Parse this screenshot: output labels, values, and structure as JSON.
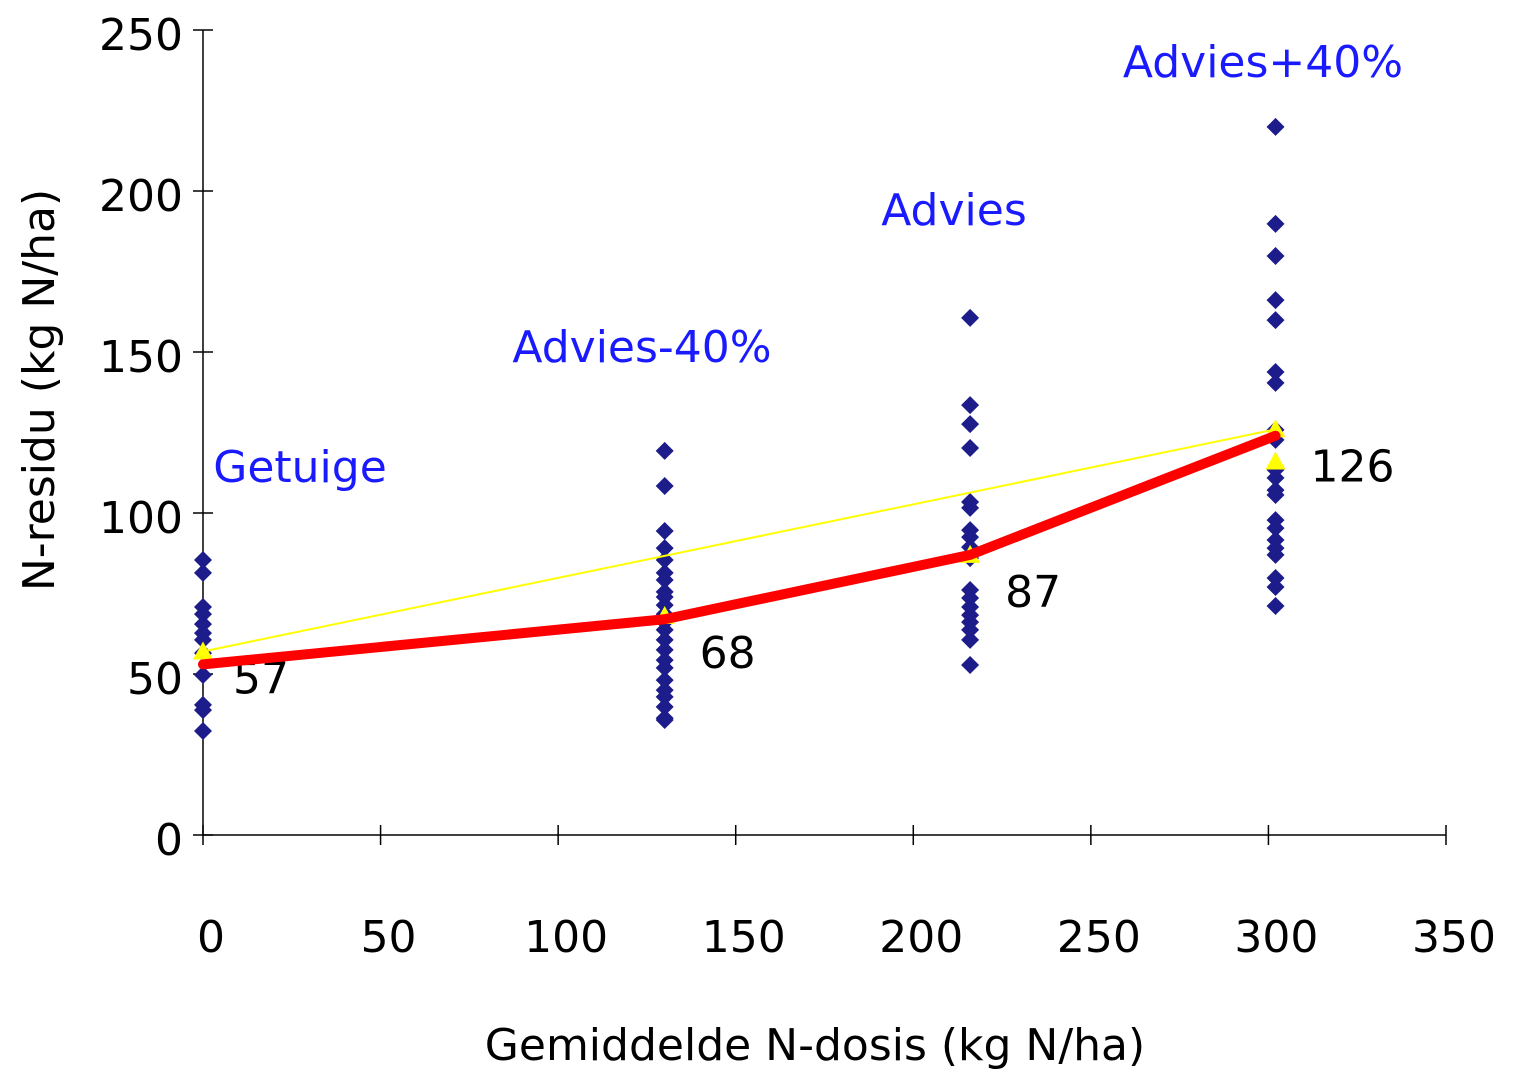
{
  "chart_data": {
    "type": "scatter",
    "x_label": "Gemiddelde N-dosis (kg N/ha)",
    "y_label": "N-residu (kg N/ha)",
    "xlim": [
      0,
      350
    ],
    "xticks": [
      0,
      50,
      100,
      150,
      200,
      250,
      300,
      350
    ],
    "ylim": [
      0,
      250
    ],
    "yticks": [
      0,
      50,
      100,
      150,
      200,
      250
    ],
    "annotations": [
      "Getuige",
      "Advies-40%",
      "Advies",
      "Advies+40%"
    ],
    "series": [
      {
        "marker": "diamond",
        "color": "#1c1c8a",
        "x": [
          0,
          0,
          0,
          0,
          0,
          0,
          0,
          0,
          0,
          0,
          0,
          0
        ],
        "values": [
          85.4,
          81.4,
          70.8,
          68.6,
          65.5,
          62.7,
          60.6,
          56.5,
          49.7,
          40.4,
          38.8,
          32.3
        ]
      },
      {
        "marker": "diamond",
        "color": "#1c1c8a",
        "x": [
          130,
          130,
          130,
          130,
          130,
          130,
          130,
          130,
          130,
          130,
          130,
          130,
          130,
          130,
          130,
          130,
          130,
          130,
          130,
          130,
          130,
          130,
          130
        ],
        "values": [
          119.3,
          108.4,
          94.4,
          89.1,
          85.4,
          81.4,
          79.2,
          75.5,
          73.9,
          71.4,
          68.6,
          66.1,
          63.7,
          60.6,
          57.5,
          54.3,
          51.9,
          48.1,
          45.0,
          42.9,
          39.8,
          36.3,
          35.7
        ]
      },
      {
        "marker": "diamond",
        "color": "#1c1c8a",
        "x": [
          216,
          216,
          216,
          216,
          216,
          216,
          216,
          216,
          216,
          216,
          216,
          216,
          216,
          216,
          216,
          216,
          216,
          216
        ],
        "values": [
          160.6,
          133.5,
          127.6,
          120.2,
          103.4,
          101.6,
          94.7,
          92.5,
          89.4,
          86.0,
          76.1,
          73.6,
          70.8,
          68.3,
          66.1,
          63.7,
          60.6,
          52.8
        ]
      },
      {
        "marker": "diamond",
        "color": "#1c1c8a",
        "x": [
          302,
          302,
          302,
          302,
          302,
          302,
          302,
          302,
          302,
          302,
          302,
          302,
          302,
          302,
          302,
          302,
          302,
          302,
          302,
          302,
          302
        ],
        "values": [
          219.9,
          189.8,
          179.8,
          166.1,
          159.9,
          143.8,
          140.4,
          125.8,
          122.7,
          113.4,
          110.9,
          107.1,
          105.6,
          97.8,
          95.3,
          91.6,
          89.1,
          87.0,
          79.8,
          77.0,
          71.1
        ]
      },
      {
        "marker": "line",
        "color": "#ffff00",
        "line_width": 2,
        "x": [
          0,
          302
        ],
        "values": [
          57,
          126
        ]
      },
      {
        "marker": "triangle",
        "color": "#ffff00",
        "labels": true,
        "x": [
          0,
          130,
          216,
          302,
          302
        ],
        "values": [
          57,
          68,
          87,
          126,
          116
        ]
      },
      {
        "marker": "line",
        "color": "#ff0000",
        "line_width": 10,
        "x": [
          0,
          130,
          216,
          302
        ],
        "values": [
          53,
          67,
          87,
          124
        ]
      }
    ]
  }
}
